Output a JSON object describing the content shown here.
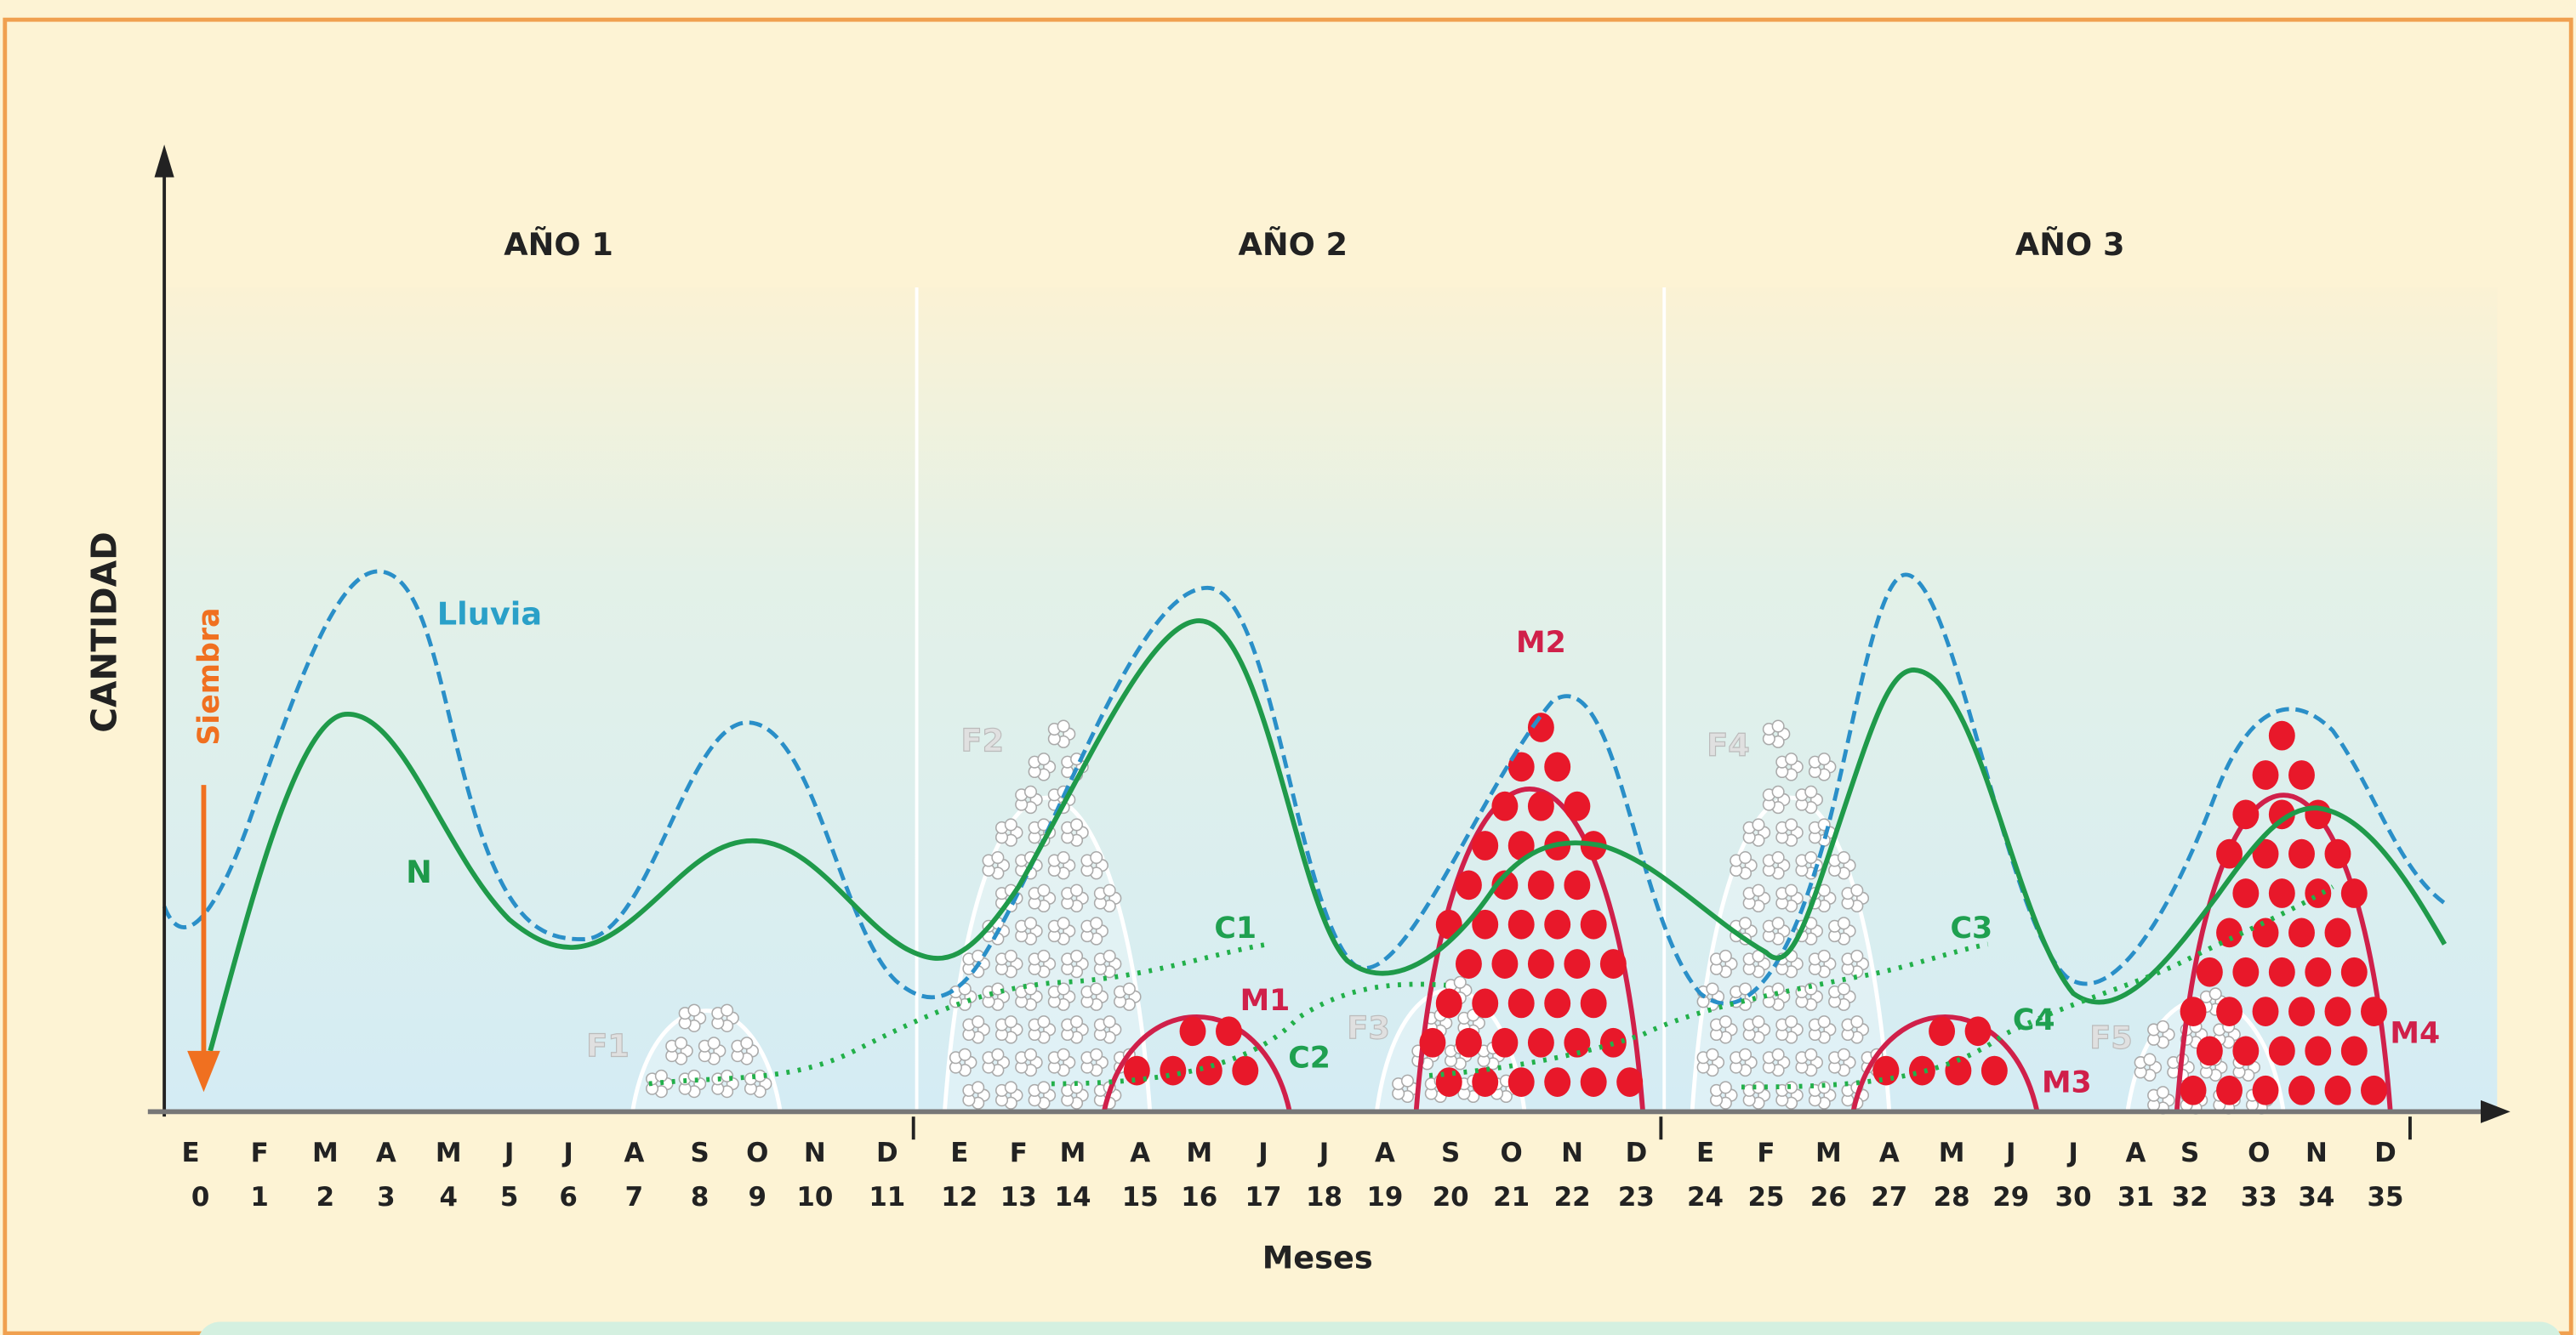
{
  "years": [
    "AÑO 1",
    "AÑO 2",
    "AÑO 3"
  ],
  "y_axis_label": "CANTIDAD",
  "x_axis_label": "Meses",
  "months": {
    "letters": [
      "E",
      "F",
      "M",
      "A",
      "M",
      "J",
      "J",
      "A",
      "S",
      "O",
      "N",
      "D",
      "E",
      "F",
      "M",
      "A",
      "M",
      "J",
      "J",
      "A",
      "S",
      "O",
      "N",
      "D",
      "E",
      "F",
      "M",
      "A",
      "M",
      "J",
      "J",
      "A",
      "S",
      "O",
      "N",
      "D"
    ],
    "numbers": [
      0,
      1,
      2,
      3,
      4,
      5,
      6,
      7,
      8,
      9,
      10,
      11,
      12,
      13,
      14,
      15,
      16,
      17,
      18,
      19,
      20,
      21,
      22,
      23,
      24,
      25,
      26,
      27,
      28,
      29,
      30,
      31,
      32,
      33,
      34,
      35
    ]
  },
  "labels": {
    "rain": "Lluvia",
    "nutrients": "N",
    "sowing": "Siembra",
    "flowering": [
      "F1",
      "F2",
      "F3",
      "F4",
      "F5"
    ],
    "fruiting": [
      "M1",
      "M2",
      "M3",
      "M4"
    ],
    "c": [
      "C1",
      "C2",
      "C3",
      "C4"
    ]
  }
}
